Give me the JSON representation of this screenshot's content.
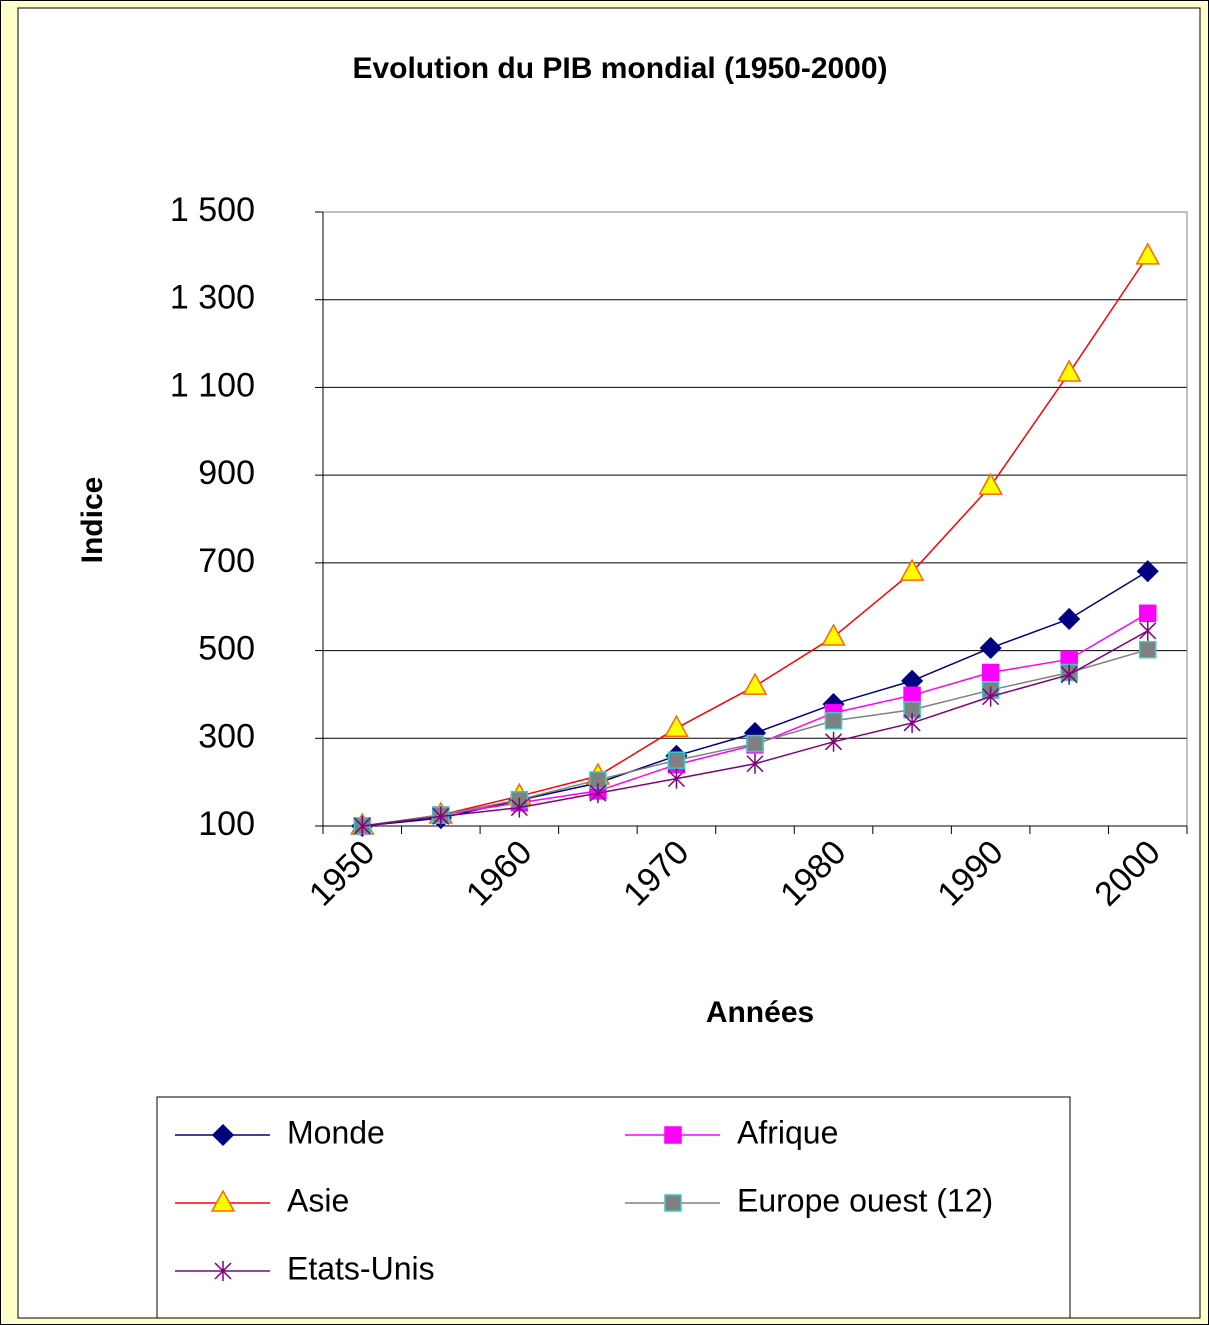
{
  "chart_data": {
    "type": "line",
    "title": "Evolution du PIB mondial (1950-2000)",
    "x_label": "Années",
    "y_label": "Indice",
    "categories": [
      "1950",
      null,
      "1960",
      null,
      "1970",
      null,
      "1980",
      null,
      "1990",
      null,
      "2000"
    ],
    "ylim": [
      100,
      1500
    ],
    "yticks": [
      100,
      300,
      500,
      700,
      900,
      {
        "value": 1100,
        "label": "1 100"
      },
      {
        "value": 1300,
        "label": "1 300"
      },
      {
        "value": 1500,
        "label": "1 500"
      }
    ],
    "grid": true,
    "series": [
      {
        "name": "Monde",
        "color": "#000080",
        "marker": "diamond",
        "marker_fill": "#000080",
        "marker_edge": "#000080",
        "values": [
          100,
          118,
          159,
          198,
          260,
          312,
          378,
          431,
          506,
          572,
          681
        ]
      },
      {
        "name": "Afrique",
        "color": "#ff00ff",
        "marker": "square",
        "marker_fill": "#ff00ff",
        "marker_edge": "#ff00ff",
        "values": [
          100,
          125,
          153,
          180,
          240,
          285,
          358,
          398,
          450,
          480,
          585
        ]
      },
      {
        "name": "Asie",
        "color": "#ff0000",
        "marker": "triangle",
        "marker_fill": "#ffff00",
        "marker_edge": "#ff6600",
        "values": [
          100,
          125,
          168,
          214,
          323,
          419,
          531,
          679,
          875,
          1133,
          1400
        ]
      },
      {
        "name": "Europe ouest (12)",
        "color": "#808080",
        "marker": "square",
        "marker_fill": "#808080",
        "marker_edge": "#33cccc",
        "values": [
          100,
          125,
          160,
          205,
          250,
          288,
          340,
          365,
          410,
          450,
          502
        ]
      },
      {
        "name": "Etats-Unis",
        "color": "#800080",
        "marker": "star",
        "marker_fill": "none",
        "marker_edge": "#800080",
        "values": [
          100,
          122,
          142,
          175,
          208,
          242,
          292,
          335,
          395,
          445,
          545
        ]
      }
    ]
  }
}
